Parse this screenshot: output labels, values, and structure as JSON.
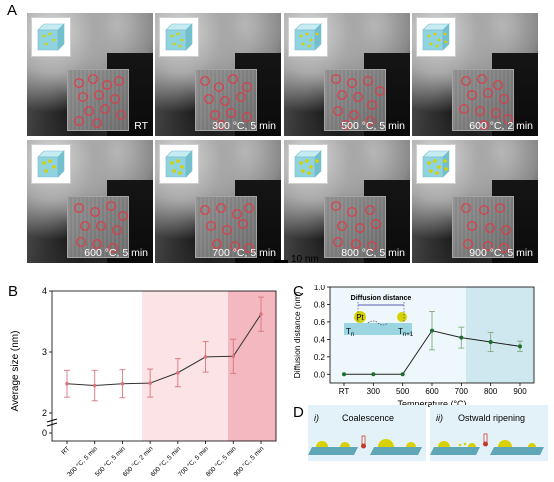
{
  "panel_labels": {
    "a": "A",
    "b": "B",
    "c": "C",
    "d": "D"
  },
  "tem_images": [
    {
      "label": "RT"
    },
    {
      "label": "300 °C, 5 min"
    },
    {
      "label": "500 °C, 5 min"
    },
    {
      "label": "600 °C, 2 min"
    },
    {
      "label": "600 °C, 5 min"
    },
    {
      "label": "700 °C, 5 min"
    },
    {
      "label": "800 °C, 5 min"
    },
    {
      "label": "900 °C, 5 min"
    }
  ],
  "scale_bar": {
    "label": "10 nm"
  },
  "colors": {
    "circle": "#e03a45",
    "cube": "#8fd3df",
    "particle": "#d8d000",
    "line_b": "#333333",
    "error": "#d9757a",
    "line_c": "#1b6e2b"
  },
  "chart_data": [
    {
      "type": "line",
      "panel": "B",
      "ylabel": "Average size (nm)",
      "categories": [
        "RT",
        "300 °C, 5 min",
        "500 °C, 5 min",
        "600 °C, 2 min",
        "600 °C, 5 min",
        "700 °C, 5 min",
        "800 °C, 5 min",
        "900 °C, 5 min"
      ],
      "values": [
        2.48,
        2.45,
        2.48,
        2.49,
        2.66,
        2.92,
        2.93,
        3.62
      ],
      "errors": [
        0.22,
        0.25,
        0.23,
        0.23,
        0.23,
        0.25,
        0.28,
        0.28
      ],
      "ylim": [
        0,
        4
      ],
      "yticks": [
        "0",
        "2",
        "3",
        "4"
      ],
      "axis_break": true,
      "shaded_regions": [
        "600 °C, 2 min – 800 °C, 5 min",
        "800 °C, 5 min – 900 °C, 5 min"
      ]
    },
    {
      "type": "line",
      "panel": "C",
      "xlabel": "Temperature (°C)",
      "ylabel": "Diffusion distance (nm)",
      "categories": [
        "RT",
        "300",
        "500",
        "600",
        "700",
        "800",
        "900"
      ],
      "values": [
        0.0,
        0.0,
        0.0,
        0.5,
        0.42,
        0.37,
        0.32
      ],
      "errors": [
        0,
        0,
        0,
        0.22,
        0.12,
        0.11,
        0.06
      ],
      "ylim": [
        -0.1,
        1.0
      ],
      "yticks": [
        "0.0",
        "0.2",
        "0.4",
        "0.6",
        "0.8",
        "1.0"
      ],
      "inset": {
        "title": "Diffusion distance",
        "particle": "Pt",
        "t_left": "T",
        "t_left_sub": "n",
        "t_right": "T",
        "t_right_sub": "n+1"
      }
    }
  ],
  "panel_d": {
    "left": {
      "numeral": "i)",
      "title": "Coalescence"
    },
    "right": {
      "numeral": "ii)",
      "title": "Ostwald ripening"
    }
  }
}
